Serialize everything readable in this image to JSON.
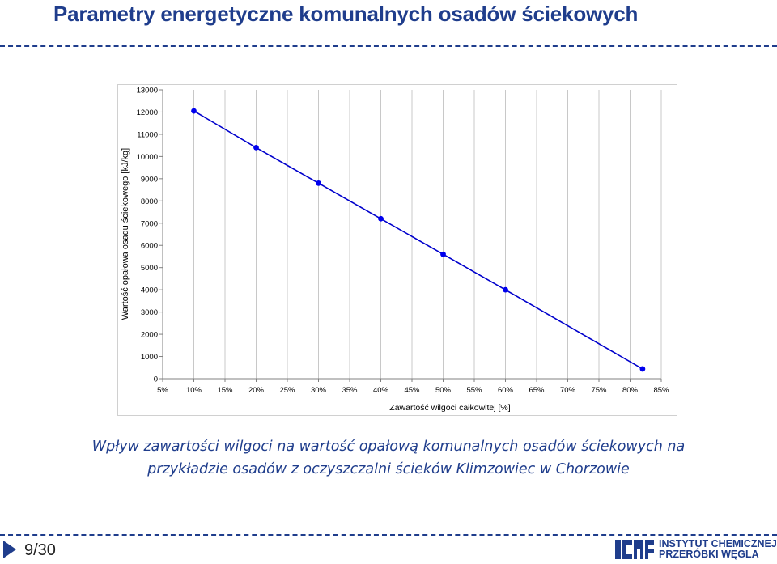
{
  "header": {
    "title": "Parametry energetyczne komunalnych osadów ściekowych"
  },
  "chart_data": {
    "type": "line",
    "xlabel": "Zawartość wilgoci całkowitej [%]",
    "ylabel": "Wartość opałowa osadu ściekowego [kJ/kg]",
    "x_ticks": [
      "5%",
      "10%",
      "15%",
      "20%",
      "25%",
      "30%",
      "35%",
      "40%",
      "45%",
      "50%",
      "55%",
      "60%",
      "65%",
      "70%",
      "75%",
      "80%",
      "85%"
    ],
    "y_ticks": [
      "0",
      "1000",
      "2000",
      "3000",
      "4000",
      "5000",
      "6000",
      "7000",
      "8000",
      "9000",
      "10000",
      "11000",
      "12000",
      "13000"
    ],
    "xlim": [
      5,
      85
    ],
    "ylim": [
      0,
      13000
    ],
    "grid": "vertical",
    "legend": "none",
    "series": [
      {
        "x": [
          10,
          20,
          30,
          40,
          50,
          60,
          82
        ],
        "y": [
          12050,
          10400,
          8800,
          7200,
          5600,
          4000,
          440
        ]
      }
    ],
    "colors": {
      "line": "#0000cc",
      "marker": "#0000ee",
      "grid": "#c8c8c8"
    }
  },
  "caption": {
    "line1": "Wpływ zawartości wilgoci na wartość opałową komunalnych osadów ściekowych na",
    "line2": "przykładzie osadów z oczyszczalni ścieków Klimzowiec w Chorzowie"
  },
  "footer": {
    "page": "9/30",
    "logo_icon": "ichpw-logo-icon",
    "logo_line1": "INSTYTUT CHEMICZNEJ",
    "logo_line2": "PRZERÓBKI WĘGLA"
  },
  "colors": {
    "brand": "#1f3d8c"
  }
}
